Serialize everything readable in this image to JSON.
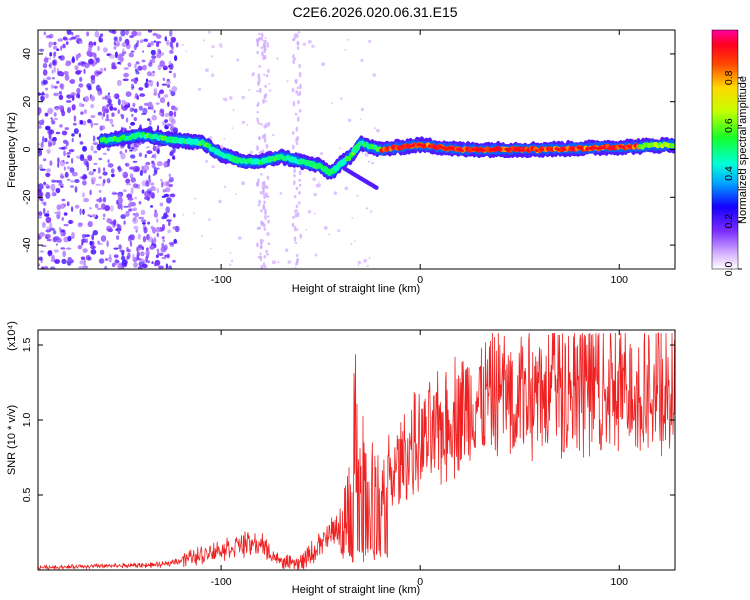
{
  "figure_title": "C2E6.2026.020.06.31.E15",
  "chart_data": [
    {
      "type": "heatmap",
      "xlabel": "Height of straight line (km)",
      "ylabel": "Frequency (Hz)",
      "xlim": [
        -192,
        128
      ],
      "ylim": [
        -50,
        50
      ],
      "x_ticks": [
        -100,
        0,
        100
      ],
      "y_ticks": [
        -40,
        -20,
        0,
        20,
        40
      ],
      "colorbar": {
        "label": "Normalized spectral amplitude",
        "range": [
          0.0,
          1.0
        ],
        "ticks": [
          0.0,
          0.2,
          0.4,
          0.6,
          0.8
        ]
      },
      "ridge": {
        "description_points": [
          [
            -155,
            4
          ],
          [
            -140,
            6
          ],
          [
            -125,
            4
          ],
          [
            -110,
            3
          ],
          [
            -100,
            -2
          ],
          [
            -90,
            -5
          ],
          [
            -80,
            -5
          ],
          [
            -70,
            -3
          ],
          [
            -60,
            -5
          ],
          [
            -50,
            -7
          ],
          [
            -45,
            -10
          ],
          [
            -40,
            -6
          ],
          [
            -35,
            -3
          ],
          [
            -30,
            3
          ],
          [
            -25,
            1
          ],
          [
            -20,
            0
          ],
          [
            -10,
            1
          ],
          [
            0,
            2
          ],
          [
            20,
            0
          ],
          [
            60,
            0
          ],
          [
            100,
            1
          ],
          [
            128,
            2
          ]
        ],
        "peak_amplitude_range_x": [
          -20,
          110
        ]
      }
    },
    {
      "type": "line",
      "xlabel": "Height of straight line (km)",
      "ylabel": "SNR (10 * v/v)",
      "y_multiplier": "x10^4",
      "xlim": [
        -192,
        128
      ],
      "ylim": [
        0,
        1.6
      ],
      "x_ticks": [
        -100,
        0,
        100
      ],
      "y_ticks": [
        0.5,
        1.0,
        1.5
      ],
      "series": [
        {
          "color": "#ee2222",
          "envelope_points": [
            [
              -192,
              0.02
            ],
            [
              -130,
              0.04
            ],
            [
              -110,
              0.12
            ],
            [
              -90,
              0.2
            ],
            [
              -80,
              0.2
            ],
            [
              -70,
              0.06
            ],
            [
              -60,
              0.05
            ],
            [
              -50,
              0.2
            ],
            [
              -40,
              0.35
            ],
            [
              -32,
              0.7
            ],
            [
              -28,
              0.9
            ],
            [
              -25,
              0.6
            ],
            [
              -20,
              0.6
            ],
            [
              -15,
              0.7
            ],
            [
              -10,
              0.85
            ],
            [
              -5,
              0.95
            ],
            [
              0,
              0.98
            ],
            [
              10,
              1.1
            ],
            [
              20,
              1.25
            ],
            [
              30,
              1.32
            ],
            [
              40,
              1.38
            ],
            [
              60,
              1.4
            ],
            [
              80,
              1.42
            ],
            [
              100,
              1.42
            ],
            [
              128,
              1.42
            ]
          ]
        }
      ]
    }
  ]
}
